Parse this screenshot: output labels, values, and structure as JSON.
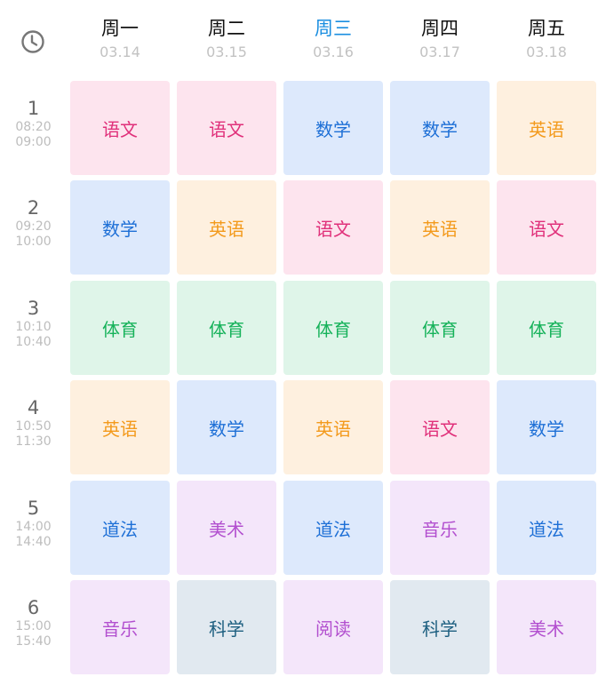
{
  "header": {
    "clock_icon": "clock-icon",
    "days": [
      {
        "name": "周一",
        "date": "03.14",
        "today": false
      },
      {
        "name": "周二",
        "date": "03.15",
        "today": false
      },
      {
        "name": "周三",
        "date": "03.16",
        "today": true
      },
      {
        "name": "周四",
        "date": "03.17",
        "today": false
      },
      {
        "name": "周五",
        "date": "03.18",
        "today": false
      }
    ],
    "today_color": "#1a8ee0"
  },
  "periods": [
    {
      "num": "1",
      "start": "08:20",
      "end": "09:00"
    },
    {
      "num": "2",
      "start": "09:20",
      "end": "10:00"
    },
    {
      "num": "3",
      "start": "10:10",
      "end": "10:40"
    },
    {
      "num": "4",
      "start": "10:50",
      "end": "11:30"
    },
    {
      "num": "5",
      "start": "14:00",
      "end": "14:40"
    },
    {
      "num": "6",
      "start": "15:00",
      "end": "15:40"
    }
  ],
  "schedule": [
    [
      "语文",
      "语文",
      "数学",
      "数学",
      "英语"
    ],
    [
      "数学",
      "英语",
      "语文",
      "英语",
      "语文"
    ],
    [
      "体育",
      "体育",
      "体育",
      "体育",
      "体育"
    ],
    [
      "英语",
      "数学",
      "英语",
      "语文",
      "数学"
    ],
    [
      "道法",
      "美术",
      "道法",
      "音乐",
      "道法"
    ],
    [
      "音乐",
      "科学",
      "阅读",
      "科学",
      "美术"
    ]
  ],
  "subject_colors": {
    "语文": {
      "bg": "#fde4ee",
      "fg": "#e0307a"
    },
    "数学": {
      "bg": "#dde9fc",
      "fg": "#1d6fd6"
    },
    "英语": {
      "bg": "#fef0df",
      "fg": "#f39a1c"
    },
    "体育": {
      "bg": "#dff5e9",
      "fg": "#16b25a"
    },
    "道法": {
      "bg": "#dde9fc",
      "fg": "#1d6fd6"
    },
    "美术": {
      "bg": "#f4e6fa",
      "fg": "#b24fcf"
    },
    "音乐": {
      "bg": "#f4e6fa",
      "fg": "#b24fcf"
    },
    "阅读": {
      "bg": "#f4e6fa",
      "fg": "#b24fcf"
    },
    "科学": {
      "bg": "#e1e9f0",
      "fg": "#1d5f80"
    }
  }
}
